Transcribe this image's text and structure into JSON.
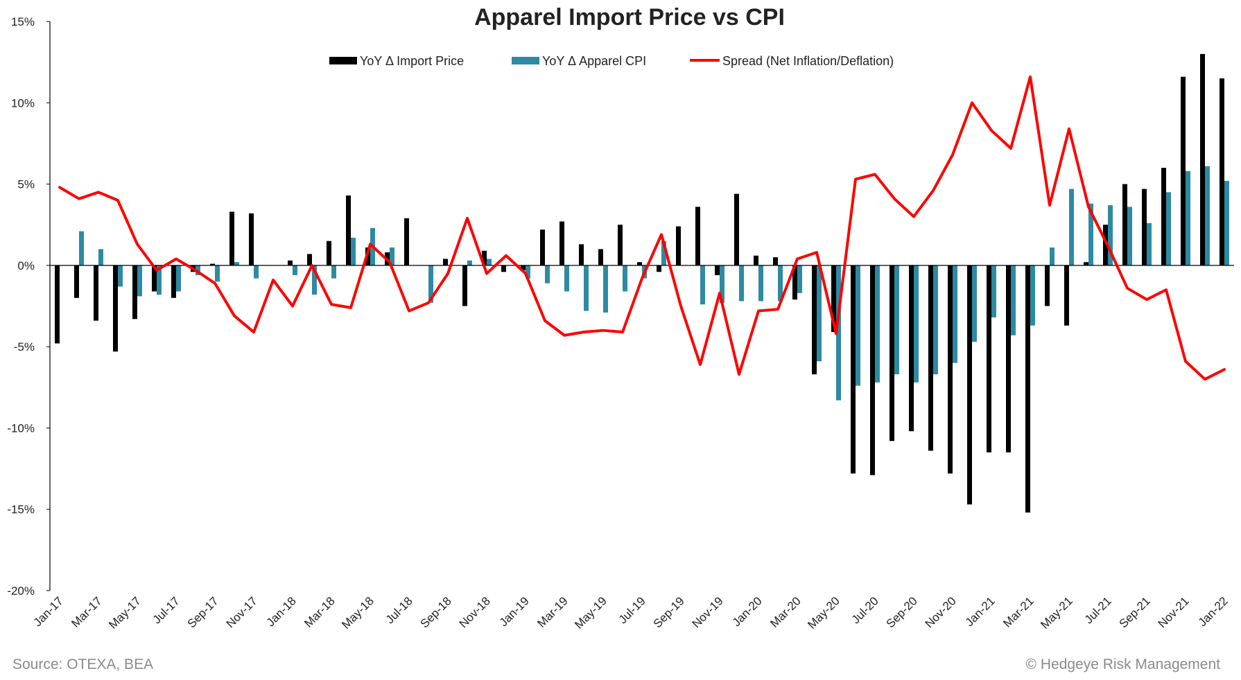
{
  "colors": {
    "import_price": "#000000",
    "apparel_cpi": "#2E8AA3",
    "spread": "#FF0000",
    "axis": "#000000",
    "footer_text": "#8a8a8a"
  },
  "footer": {
    "source": "Source: OTEXA, BEA",
    "copyright": "© Hedgeye Risk Management"
  },
  "chart_data": {
    "type": "bar",
    "title": "Apparel Import Price vs CPI",
    "ylim": [
      -20,
      15
    ],
    "yticks": [
      15,
      10,
      5,
      0,
      -5,
      -10,
      -15,
      -20
    ],
    "ytick_labels": [
      "15%",
      "10%",
      "5%",
      "0%",
      "-5%",
      "-10%",
      "-15%",
      "-20%"
    ],
    "grid": false,
    "legend_position": "top",
    "categories": [
      "Jan-17",
      "Feb-17",
      "Mar-17",
      "Apr-17",
      "May-17",
      "Jun-17",
      "Jul-17",
      "Aug-17",
      "Sep-17",
      "Oct-17",
      "Nov-17",
      "Dec-17",
      "Jan-18",
      "Feb-18",
      "Mar-18",
      "Apr-18",
      "May-18",
      "Jun-18",
      "Jul-18",
      "Aug-18",
      "Sep-18",
      "Oct-18",
      "Nov-18",
      "Dec-18",
      "Jan-19",
      "Feb-19",
      "Mar-19",
      "Apr-19",
      "May-19",
      "Jun-19",
      "Jul-19",
      "Aug-19",
      "Sep-19",
      "Oct-19",
      "Nov-19",
      "Dec-19",
      "Jan-20",
      "Feb-20",
      "Mar-20",
      "Apr-20",
      "May-20",
      "Jun-20",
      "Jul-20",
      "Aug-20",
      "Sep-20",
      "Oct-20",
      "Nov-20",
      "Dec-20",
      "Jan-21",
      "Feb-21",
      "Mar-21",
      "Apr-21",
      "May-21",
      "Jun-21",
      "Jul-21",
      "Aug-21",
      "Sep-21",
      "Oct-21",
      "Nov-21",
      "Dec-21",
      "Jan-22"
    ],
    "x_tick_labels": [
      "Jan-17",
      "Mar-17",
      "May-17",
      "Jul-17",
      "Sep-17",
      "Nov-17",
      "Jan-18",
      "Mar-18",
      "May-18",
      "Jul-18",
      "Sep-18",
      "Nov-18",
      "Jan-19",
      "Mar-19",
      "May-19",
      "Jul-19",
      "Sep-19",
      "Nov-19",
      "Jan-20",
      "Mar-20",
      "May-20",
      "Jul-20",
      "Sep-20",
      "Nov-20",
      "Jan-21",
      "Mar-21",
      "May-21",
      "Jul-21",
      "Sep-21",
      "Nov-21",
      "Jan-22"
    ],
    "series": [
      {
        "name": "YoY Δ Import Price",
        "type": "bar",
        "values": [
          -4.8,
          -2.0,
          -3.4,
          -5.3,
          -3.3,
          -1.6,
          -2.0,
          -0.4,
          0.1,
          3.3,
          3.2,
          0.0,
          0.3,
          0.7,
          1.5,
          4.3,
          1.1,
          0.8,
          2.9,
          0.0,
          0.4,
          -2.5,
          0.9,
          -0.4,
          -0.3,
          2.2,
          2.7,
          1.3,
          1.0,
          2.5,
          0.2,
          -0.4,
          2.4,
          3.6,
          -0.6,
          4.4,
          0.6,
          0.5,
          -2.1,
          -6.7,
          -4.1,
          -12.8,
          -12.9,
          -10.8,
          -10.2,
          -11.4,
          -12.8,
          -14.7,
          -11.5,
          -11.5,
          -15.2,
          -2.5,
          -3.7,
          0.2,
          2.5,
          5.0,
          4.7,
          6.0,
          11.6,
          13.0,
          11.5
        ]
      },
      {
        "name": "YoY Δ Apparel CPI",
        "type": "bar",
        "values": [
          0.0,
          2.1,
          1.0,
          -1.3,
          -1.9,
          -1.8,
          -1.6,
          -0.6,
          -1.0,
          0.2,
          -0.8,
          0.0,
          -0.6,
          -1.8,
          -0.8,
          1.7,
          2.3,
          1.1,
          0.0,
          -2.3,
          0.0,
          0.3,
          0.4,
          0.0,
          -0.8,
          -1.1,
          -1.6,
          -2.8,
          -2.9,
          -1.6,
          -0.8,
          1.5,
          0.0,
          -2.4,
          -2.3,
          -2.2,
          -2.2,
          -2.2,
          -1.7,
          -5.9,
          -8.3,
          -7.4,
          -7.2,
          -6.7,
          -7.2,
          -6.7,
          -6.0,
          -4.7,
          -3.2,
          -4.3,
          -3.7,
          1.1,
          4.7,
          3.8,
          3.7,
          3.6,
          2.6,
          4.5,
          5.8,
          6.1,
          5.2
        ]
      },
      {
        "name": "Spread (Net Inflation/Deflation)",
        "type": "line",
        "values": [
          4.8,
          4.1,
          4.5,
          4.0,
          1.3,
          -0.3,
          0.4,
          -0.3,
          -1.1,
          -3.1,
          -4.1,
          -0.9,
          -2.5,
          0.0,
          -2.4,
          -2.6,
          1.3,
          0.2,
          -2.8,
          -2.3,
          -0.5,
          2.9,
          -0.5,
          0.6,
          -0.5,
          -3.4,
          -4.3,
          -4.1,
          -4.0,
          -4.1,
          -0.8,
          1.9,
          -2.5,
          -6.1,
          -1.7,
          -6.7,
          -2.8,
          -2.7,
          0.4,
          0.8,
          -4.2,
          5.3,
          5.6,
          4.1,
          3.0,
          4.6,
          6.8,
          10.0,
          8.3,
          7.2,
          11.6,
          3.7,
          8.4,
          3.6,
          1.2,
          -1.4,
          -2.1,
          -1.5,
          -5.9,
          -7.0,
          -6.4
        ]
      }
    ]
  }
}
